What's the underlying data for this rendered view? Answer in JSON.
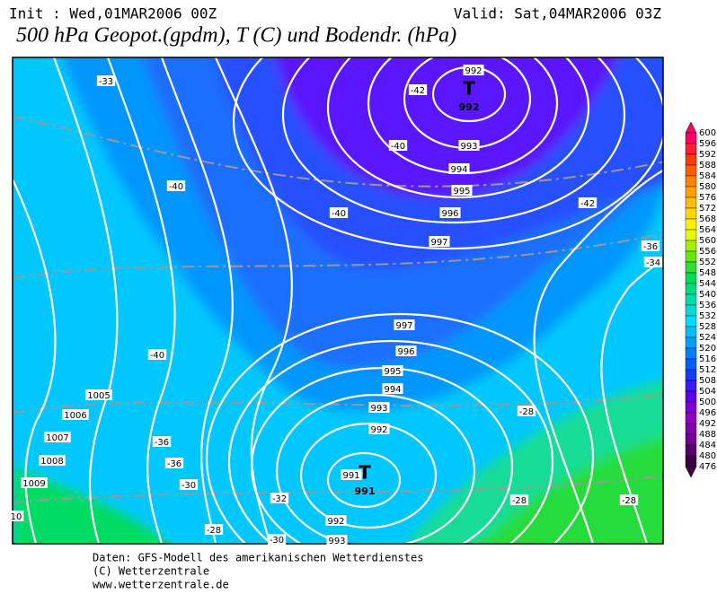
{
  "header": {
    "init": "Init : Wed,01MAR2006 00Z",
    "valid": "Valid: Sat,04MAR2006 03Z",
    "title": "500 hPa Geopot.(gpdm), T (C) und Bodendr. (hPa)"
  },
  "map": {
    "pressure_labels": [
      "992",
      "993",
      "994",
      "995",
      "996",
      "997",
      "997",
      "996",
      "995",
      "994",
      "993",
      "992",
      "991",
      "992",
      "993",
      "1005",
      "1006",
      "1007",
      "1008",
      "1009",
      "10"
    ],
    "temperature_labels": [
      "-33",
      "-42",
      "-40",
      "-40",
      "-40",
      "-42",
      "-36",
      "-34",
      "-40",
      "-28",
      "-36",
      "-36",
      "-30",
      "-32",
      "-28",
      "-28",
      "-28",
      "-30"
    ],
    "lows": [
      {
        "symbol": "T",
        "pressure": "992"
      },
      {
        "symbol": "T",
        "pressure": "991"
      }
    ]
  },
  "legend": {
    "labels": [
      "600",
      "596",
      "592",
      "588",
      "584",
      "580",
      "576",
      "572",
      "568",
      "564",
      "560",
      "556",
      "552",
      "548",
      "544",
      "540",
      "536",
      "532",
      "528",
      "524",
      "520",
      "516",
      "512",
      "508",
      "504",
      "500",
      "496",
      "492",
      "488",
      "484",
      "480",
      "476"
    ]
  },
  "footer": {
    "lines": [
      "Daten: GFS-Modell des amerikanischen Wetterdienstes",
      "(C) Wetterzentrale",
      "www.wetterzentrale.de"
    ]
  }
}
